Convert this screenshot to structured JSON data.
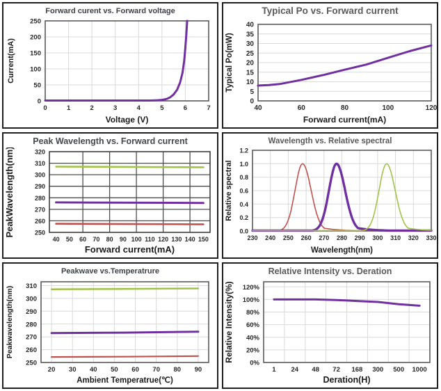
{
  "colors": {
    "purple": "#7030A0",
    "green": "#A0C346",
    "red": "#C0504D",
    "grid_light": "#d9d9d9",
    "grid_dark": "#4d4d4d",
    "box_light": "#595959",
    "box_dark": "#3c3c3c",
    "tick_text": "#262626",
    "axis_label_text": "#1a1a1a"
  },
  "chart_data": [
    {
      "type": "line",
      "title": "Forward curent vs. Forward voltage",
      "title_color": "#3e4147",
      "xlabel": "Voltage (V)",
      "ylabel": "Current(mA)",
      "xlim": [
        0,
        7
      ],
      "ylim": [
        0,
        250
      ],
      "x_tick_values": [
        0,
        1,
        2,
        3,
        4,
        5,
        6,
        7
      ],
      "x_tick_labels": [
        "0",
        "1",
        "2",
        "3",
        "4",
        "5",
        "6",
        "7"
      ],
      "y_tick_values": [
        0,
        50,
        100,
        150,
        200,
        250
      ],
      "y_tick_labels": [
        "0",
        "50",
        "100",
        "150",
        "200",
        "250"
      ],
      "x_grid": [
        1,
        2,
        3,
        4,
        5,
        6
      ],
      "y_grid": [
        50,
        100,
        150,
        200
      ],
      "grid": "light",
      "series": [
        {
          "name": "forward-current-vs-voltage",
          "color": "purple",
          "width": 3,
          "points": [
            [
              0,
              1
            ],
            [
              1,
              1
            ],
            [
              2,
              1
            ],
            [
              3,
              1
            ],
            [
              4,
              1
            ],
            [
              4.5,
              1
            ],
            [
              4.8,
              2
            ],
            [
              5.0,
              3
            ],
            [
              5.2,
              6
            ],
            [
              5.35,
              11
            ],
            [
              5.5,
              20
            ],
            [
              5.65,
              35
            ],
            [
              5.78,
              58
            ],
            [
              5.88,
              88
            ],
            [
              5.95,
              125
            ],
            [
              6.0,
              165
            ],
            [
              6.04,
              205
            ],
            [
              6.08,
              250
            ]
          ]
        }
      ]
    },
    {
      "type": "line",
      "title": "Typical Po vs. Forward current",
      "title_color": "#595959",
      "xlabel": "Forward current(mA)",
      "ylabel": "Typical Po(mW)",
      "xlim": [
        40,
        120
      ],
      "ylim": [
        0,
        40
      ],
      "x_tick_values": [
        40,
        60,
        80,
        100,
        120
      ],
      "x_tick_labels": [
        "40",
        "60",
        "80",
        "100",
        "120"
      ],
      "y_tick_values": [
        0,
        5,
        10,
        15,
        20,
        25,
        30,
        35,
        40
      ],
      "y_tick_labels": [
        "0",
        "5",
        "10",
        "15",
        "20",
        "25",
        "30",
        "35",
        "40"
      ],
      "x_grid": [],
      "y_grid": [
        5,
        10,
        15,
        20,
        25,
        30,
        35
      ],
      "grid": "light",
      "series": [
        {
          "name": "typical-po",
          "color": "purple",
          "width": 3,
          "points": [
            [
              40,
              8
            ],
            [
              45,
              8.3
            ],
            [
              50,
              8.8
            ],
            [
              60,
              11
            ],
            [
              70,
              13.5
            ],
            [
              80,
              16.3
            ],
            [
              90,
              19
            ],
            [
              100,
              22.5
            ],
            [
              110,
              26
            ],
            [
              120,
              29
            ]
          ]
        }
      ]
    },
    {
      "type": "line",
      "title": "Peak Wavelength vs. Forward current",
      "title_color": "#44474d",
      "xlabel": "Forward current(mA)",
      "ylabel": "PeakWavelength(nm)",
      "xlim": [
        35,
        155
      ],
      "ylim": [
        250,
        320
      ],
      "x_tick_values": [
        40,
        50,
        60,
        70,
        80,
        90,
        100,
        110,
        120,
        130,
        140,
        150
      ],
      "x_tick_labels": [
        "40",
        "50",
        "60",
        "70",
        "80",
        "90",
        "100",
        "110",
        "120",
        "130",
        "140",
        "150"
      ],
      "y_tick_values": [
        250,
        260,
        270,
        280,
        290,
        300,
        310,
        320
      ],
      "y_tick_labels": [
        "250",
        "260",
        "270",
        "280",
        "290",
        "300",
        "310",
        "320"
      ],
      "x_grid": [
        60,
        80,
        100,
        120,
        140
      ],
      "y_grid": [
        260,
        270,
        280,
        290,
        300,
        310
      ],
      "grid": "dark",
      "series": [
        {
          "name": "peak-wavelength-305nm",
          "color": "green",
          "width": 2.6,
          "points": [
            [
              40,
              307
            ],
            [
              150,
              306.5
            ]
          ]
        },
        {
          "name": "peak-wavelength-275nm",
          "color": "purple",
          "width": 3,
          "points": [
            [
              40,
              276
            ],
            [
              150,
              275.5
            ]
          ]
        },
        {
          "name": "peak-wavelength-255nm",
          "color": "red",
          "width": 2.6,
          "points": [
            [
              40,
              257.5
            ],
            [
              150,
              257
            ]
          ]
        }
      ]
    },
    {
      "type": "line",
      "title": "Wavelength vs. Relative spectral",
      "title_color": "#595959",
      "xlabel": "Wavelength(nm)",
      "ylabel": "Relative spectral",
      "xlim": [
        230,
        330
      ],
      "ylim": [
        0,
        1.2
      ],
      "x_tick_values": [
        230,
        240,
        250,
        260,
        270,
        280,
        290,
        300,
        310,
        320,
        330
      ],
      "x_tick_labels": [
        "230",
        "240",
        "250",
        "260",
        "270",
        "280",
        "290",
        "300",
        "310",
        "320",
        "330"
      ],
      "y_tick_values": [
        0,
        0.2,
        0.4,
        0.6,
        0.8,
        1.0,
        1.2
      ],
      "y_tick_labels": [
        "0.0",
        "0.2",
        "0.4",
        "0.6",
        "0.8",
        "1.0",
        "1.2"
      ],
      "x_grid": [
        240,
        250,
        260,
        270,
        280,
        290,
        300,
        310,
        320
      ],
      "y_grid": [
        0.2,
        0.4,
        0.6,
        0.8,
        1.0
      ],
      "grid": "light",
      "series": [
        {
          "name": "spectrum-uvc-258nm",
          "color": "red",
          "width": 1.6,
          "peak": {
            "center": 258,
            "height": 1.0,
            "sigma_left": 4.2,
            "sigma_right": 4.8,
            "tail_amp": 0.16,
            "tail_decay": 9
          }
        },
        {
          "name": "spectrum-uvb-277nm",
          "color": "purple",
          "width": 3.4,
          "peak": {
            "center": 277,
            "height": 1.0,
            "sigma_left": 4.2,
            "sigma_right": 4.8,
            "tail_amp": 0.16,
            "tail_decay": 9
          }
        },
        {
          "name": "spectrum-uva-305nm",
          "color": "green",
          "width": 1.6,
          "peak": {
            "center": 305,
            "height": 1.0,
            "sigma_left": 4.2,
            "sigma_right": 4.8,
            "tail_amp": 0.16,
            "tail_decay": 9
          }
        }
      ]
    },
    {
      "type": "line",
      "title": "Peakwave vs.Temperatrure",
      "title_color": "#3e4147",
      "xlabel": "Ambient Temperatrue(℃)",
      "ylabel": "Peakwavelength(nm)",
      "xlim": [
        15,
        95
      ],
      "ylim": [
        250,
        313
      ],
      "x_tick_values": [
        20,
        30,
        40,
        50,
        60,
        70,
        80,
        90
      ],
      "x_tick_labels": [
        "20",
        "30",
        "40",
        "50",
        "60",
        "70",
        "80",
        "90"
      ],
      "y_tick_values": [
        250,
        260,
        270,
        280,
        290,
        300,
        310
      ],
      "y_tick_labels": [
        "250",
        "260",
        "270",
        "280",
        "290",
        "300",
        "310"
      ],
      "x_grid": [
        20,
        30,
        40,
        50,
        60,
        70,
        80,
        90
      ],
      "y_grid": [
        260,
        270,
        280,
        290,
        300,
        310
      ],
      "grid": "light",
      "series": [
        {
          "name": "peakwave-305nm-vs-temp",
          "color": "green",
          "width": 2.5,
          "points": [
            [
              20,
              307.2
            ],
            [
              55,
              307.4
            ],
            [
              90,
              307.8
            ]
          ]
        },
        {
          "name": "peakwave-275nm-vs-temp",
          "color": "purple",
          "width": 3,
          "points": [
            [
              20,
              273
            ],
            [
              55,
              273.3
            ],
            [
              90,
              274
            ]
          ]
        },
        {
          "name": "peakwave-255nm-vs-temp",
          "color": "red",
          "width": 2.2,
          "points": [
            [
              20,
              254.3
            ],
            [
              55,
              254.5
            ],
            [
              90,
              255
            ]
          ]
        }
      ]
    },
    {
      "type": "line",
      "title": "Relative Intensity vs. Deration",
      "title_color": "#595959",
      "xlabel": "Deration(H)",
      "ylabel": "Relative Intensity(%)",
      "categories": [
        "1",
        "24",
        "48",
        "72",
        "168",
        "300",
        "500",
        "1000"
      ],
      "ylim": [
        0,
        128
      ],
      "y_tick_values": [
        0,
        20,
        40,
        60,
        80,
        100,
        120
      ],
      "y_tick_labels": [
        "0%",
        "20%",
        "40%",
        "60%",
        "80%",
        "100%",
        "120%"
      ],
      "y_grid": [
        20,
        40,
        60,
        80,
        100,
        120
      ],
      "grid": "light",
      "series": [
        {
          "name": "relative-intensity-deration",
          "color": "purple",
          "width": 3,
          "values": [
            100,
            100,
            100,
            99,
            97.5,
            96,
            92.5,
            90
          ]
        }
      ]
    }
  ]
}
